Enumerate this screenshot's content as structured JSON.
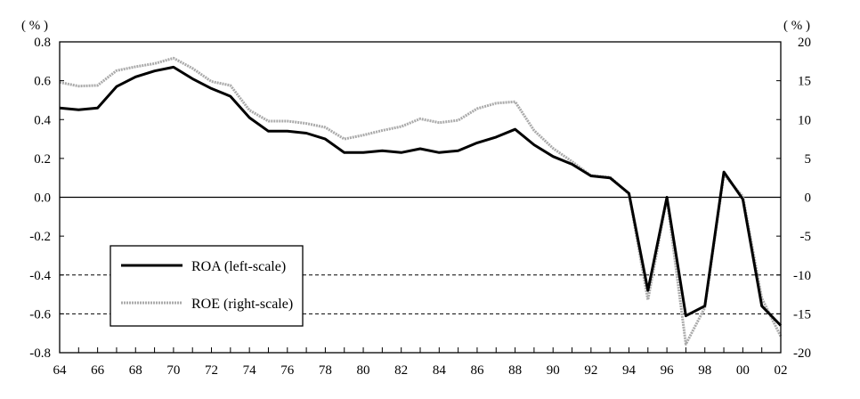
{
  "chart_data": {
    "type": "line",
    "left_axis_unit": "( % )",
    "right_axis_unit": "( % )",
    "x_tick_labels": [
      "64",
      "66",
      "68",
      "70",
      "72",
      "74",
      "76",
      "78",
      "80",
      "82",
      "84",
      "86",
      "88",
      "90",
      "92",
      "94",
      "96",
      "98",
      "00",
      "02"
    ],
    "y_left_ticks": [
      "0.8",
      "0.6",
      "0.4",
      "0.2",
      "0.0",
      "-0.2",
      "-0.4",
      "-0.6",
      "-0.8"
    ],
    "y_right_ticks": [
      "20",
      "15",
      "10",
      "5",
      "0",
      "-5",
      "-10",
      "-15",
      "-20"
    ],
    "y_left_range": [
      -0.8,
      0.8
    ],
    "y_right_range": [
      -20,
      20
    ],
    "x_range": [
      1964,
      2002
    ],
    "dashed_reference_lines_left": [
      -0.4,
      -0.6
    ],
    "legend_placement": "bottom-left",
    "series": [
      {
        "name": "ROA (left-scale)",
        "axis": "left",
        "color": "#000000",
        "x": [
          1964,
          1965,
          1966,
          1967,
          1968,
          1969,
          1970,
          1971,
          1972,
          1973,
          1974,
          1975,
          1976,
          1977,
          1978,
          1979,
          1980,
          1981,
          1982,
          1983,
          1984,
          1985,
          1986,
          1987,
          1988,
          1989,
          1990,
          1991,
          1992,
          1993,
          1994,
          1995,
          1996,
          1997,
          1998,
          1999,
          2000,
          2001,
          2002
        ],
        "values": [
          0.46,
          0.45,
          0.46,
          0.57,
          0.62,
          0.65,
          0.67,
          0.61,
          0.56,
          0.52,
          0.41,
          0.34,
          0.34,
          0.33,
          0.3,
          0.23,
          0.23,
          0.24,
          0.23,
          0.25,
          0.23,
          0.24,
          0.28,
          0.31,
          0.35,
          0.27,
          0.21,
          0.17,
          0.11,
          0.1,
          0.02,
          -0.48,
          0.0,
          -0.61,
          -0.56,
          0.13,
          -0.01,
          -0.56,
          -0.66
        ]
      },
      {
        "name": "ROE (right-scale)",
        "axis": "right",
        "color": "#aaaaaa",
        "x": [
          1964,
          1965,
          1966,
          1967,
          1968,
          1969,
          1970,
          1971,
          1972,
          1973,
          1974,
          1975,
          1976,
          1977,
          1978,
          1979,
          1980,
          1981,
          1982,
          1983,
          1984,
          1985,
          1986,
          1987,
          1988,
          1989,
          1990,
          1991,
          1992,
          1993,
          1994,
          1995,
          1996,
          1997,
          1998,
          1999,
          2000,
          2001,
          2002
        ],
        "values": [
          14.8,
          14.3,
          14.4,
          16.3,
          16.8,
          17.2,
          17.9,
          16.6,
          14.9,
          14.4,
          11.2,
          9.8,
          9.8,
          9.5,
          9.0,
          7.5,
          8.0,
          8.6,
          9.1,
          10.1,
          9.6,
          9.9,
          11.4,
          12.1,
          12.3,
          8.6,
          6.3,
          4.6,
          2.8,
          2.6,
          0.4,
          -13.2,
          -0.1,
          -18.9,
          -14.2,
          2.9,
          0.1,
          -13.0,
          -17.9
        ]
      }
    ]
  }
}
